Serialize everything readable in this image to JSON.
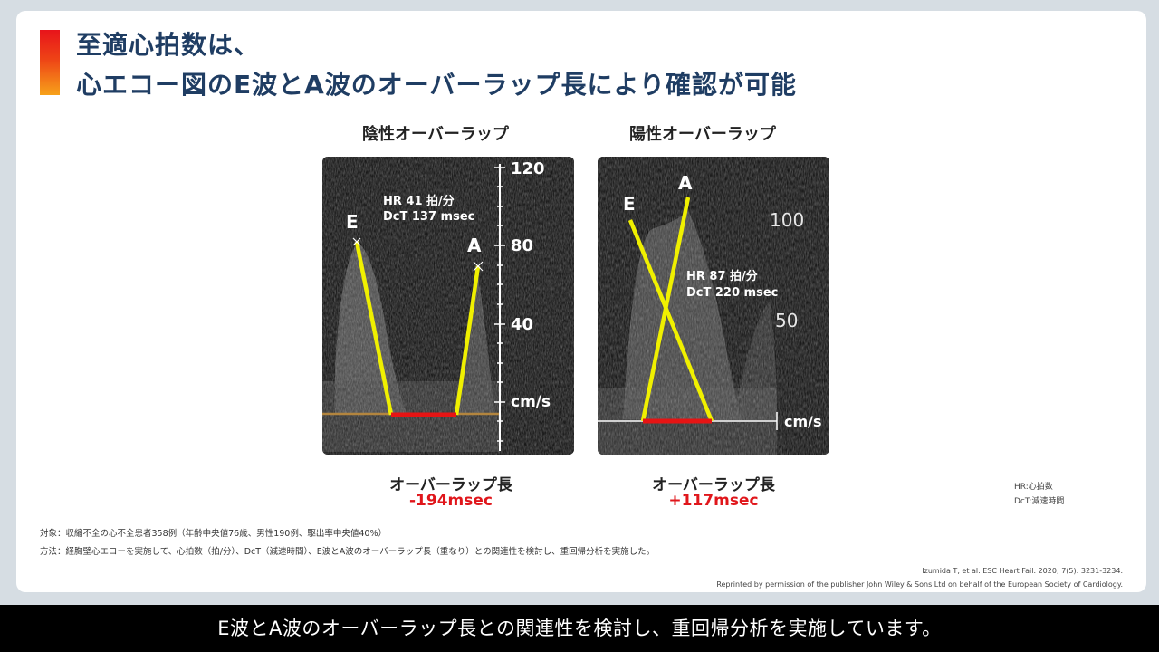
{
  "title": {
    "line1": "至適心拍数は、",
    "line2": "心エコー図のE波とA波のオーバーラップ長により確認が可能"
  },
  "panels": [
    {
      "heading": "陰性オーバーラップ",
      "hr": "HR 41 拍/分",
      "dct": "DcT 137 msec",
      "label_e": "E",
      "label_a": "A",
      "scale": [
        "120",
        "80",
        "40",
        "cm/s"
      ],
      "overlap_label": "オーバーラップ長",
      "overlap_value": "-194msec"
    },
    {
      "heading": "陽性オーバーラップ",
      "hr": "HR 87 拍/分",
      "dct": "DcT 220 msec",
      "label_e": "E",
      "label_a": "A",
      "scale": [
        "100",
        "50",
        "cm/s"
      ],
      "overlap_label": "オーバーラップ長",
      "overlap_value": "+117msec"
    }
  ],
  "legend": {
    "hr": "HR:心拍数",
    "dct": "DcT:減速時間"
  },
  "notes": {
    "subject": "対象：収縮不全の心不全患者358例（年齢中央値76歳、男性190例、駆出率中央値40%）",
    "method": "方法：経胸壁心エコーを実施して、心拍数（拍/分）、DcT（減速時間）、E波とA波のオーバーラップ長（重なり）との関連性を検討し、重回帰分析を実施した。"
  },
  "reference": {
    "citation": "Izumida T, et al. ESC Heart Fail. 2020; 7(5): 3231-3234.",
    "permission": "Reprinted by permission of the publisher John Wiley & Sons Ltd on behalf of the European Society of Cardiology."
  },
  "caption": "E波とA波のオーバーラップ長との関連性を検討し、重回帰分析を実施しています。",
  "colors": {
    "title": "#1f3d63",
    "accent_red": "#e0161b",
    "marker_yellow": "#f0f000"
  }
}
